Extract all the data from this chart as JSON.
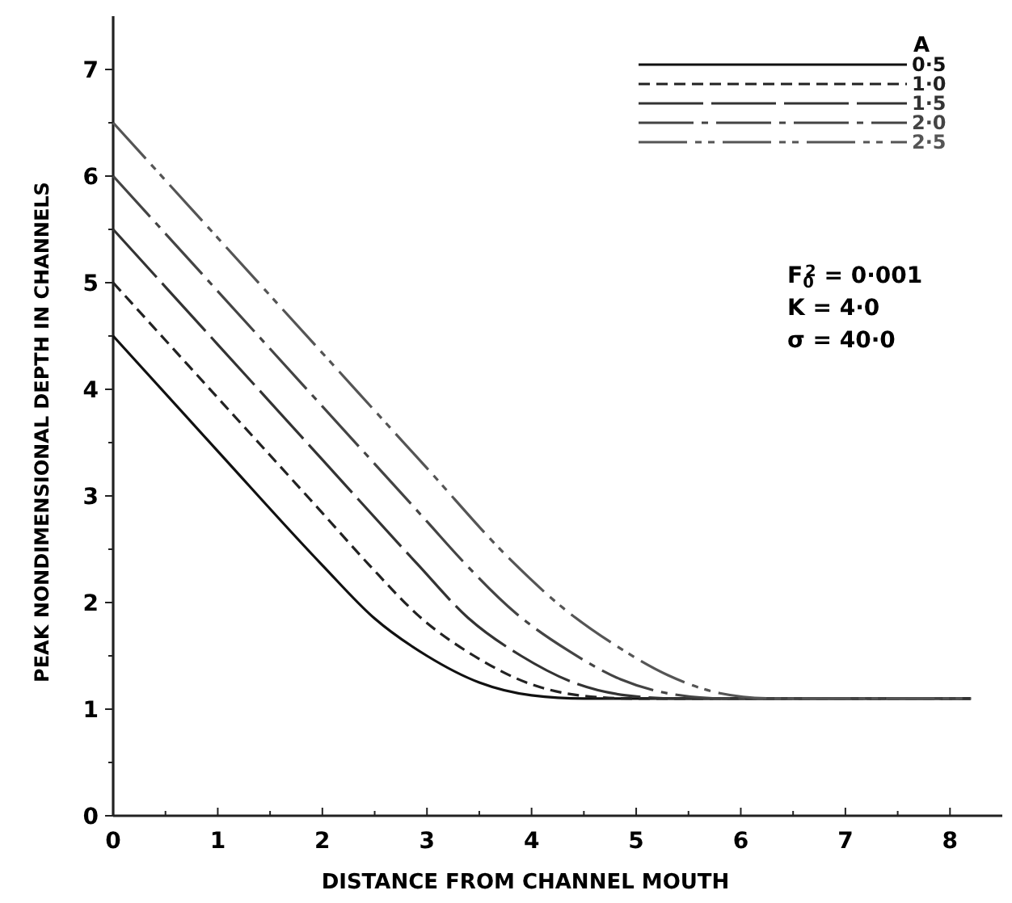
{
  "chart_data": {
    "type": "line",
    "xlabel": "DISTANCE FROM CHANNEL MOUTH",
    "ylabel": "PEAK NONDIMENSIONAL DEPTH IN CHANNELS",
    "legend_title": "A",
    "legend": "top right",
    "grid": false,
    "marker": "none",
    "xlim": [
      0,
      8.5
    ],
    "ylim": [
      0,
      7.5
    ],
    "xticks": [
      0,
      {
        "value": 0.5,
        "label": null
      },
      1,
      {
        "value": 1.5,
        "label": null
      },
      2,
      {
        "value": 2.5,
        "label": null
      },
      3,
      {
        "value": 3.5,
        "label": null
      },
      4,
      {
        "value": 4.5,
        "label": null
      },
      5,
      {
        "value": 5.5,
        "label": null
      },
      6,
      {
        "value": 6.5,
        "label": null
      },
      7,
      {
        "value": 7.5,
        "label": null
      },
      8
    ],
    "yticks": [
      0,
      {
        "value": 0.5,
        "label": null
      },
      1,
      {
        "value": 1.5,
        "label": null
      },
      2,
      {
        "value": 2.5,
        "label": null
      },
      3,
      {
        "value": 3.5,
        "label": null
      },
      4,
      {
        "value": 4.5,
        "label": null
      },
      5,
      {
        "value": 5.5,
        "label": null
      },
      6,
      {
        "value": 6.5,
        "label": null
      },
      7
    ],
    "series": [
      {
        "name": "0·5",
        "color": "#111111",
        "line_style": "solid",
        "x": [
          0,
          1,
          2,
          2.5,
          3,
          3.5,
          4,
          4.5,
          5,
          8.2
        ],
        "values": [
          4.5,
          3.42,
          2.35,
          1.85,
          1.5,
          1.25,
          1.13,
          1.1,
          1.1,
          1.1
        ]
      },
      {
        "name": "1·0",
        "color": "#222222",
        "line_style": "dashed",
        "x": [
          0,
          1,
          2,
          2.45,
          2.95,
          3.45,
          3.95,
          4.45,
          4.95,
          5.45,
          8.2
        ],
        "values": [
          5.0,
          3.92,
          2.84,
          2.35,
          1.85,
          1.5,
          1.25,
          1.13,
          1.1,
          1.1,
          1.1
        ]
      },
      {
        "name": "1·5",
        "color": "#333333",
        "line_style": "long_dash",
        "x": [
          0,
          1,
          2,
          2.9,
          3.4,
          3.9,
          4.4,
          4.9,
          5.4,
          5.9,
          8.2
        ],
        "values": [
          5.5,
          4.42,
          3.34,
          2.37,
          1.85,
          1.5,
          1.25,
          1.13,
          1.1,
          1.1,
          1.1
        ]
      },
      {
        "name": "2·0",
        "color": "#444444",
        "line_style": "dash_dot",
        "x": [
          0,
          1,
          2,
          3,
          3.35,
          3.85,
          4.35,
          4.85,
          5.35,
          5.85,
          6.35,
          8.2
        ],
        "values": [
          6.0,
          4.92,
          3.84,
          2.76,
          2.38,
          1.9,
          1.55,
          1.28,
          1.14,
          1.1,
          1.1,
          1.1
        ]
      },
      {
        "name": "2·5",
        "color": "#555555",
        "line_style": "dash_dot_dot",
        "x": [
          0,
          1,
          2,
          3,
          3.8,
          4.3,
          4.8,
          5.3,
          5.8,
          6.3,
          6.8,
          8.2
        ],
        "values": [
          6.5,
          5.42,
          4.34,
          3.26,
          2.4,
          1.95,
          1.6,
          1.32,
          1.15,
          1.1,
          1.1,
          1.1
        ]
      }
    ],
    "annotations": [
      "F$_{0}$$^{2}$ = 0·001",
      "K = 4·0",
      "σ = 40·0"
    ]
  }
}
